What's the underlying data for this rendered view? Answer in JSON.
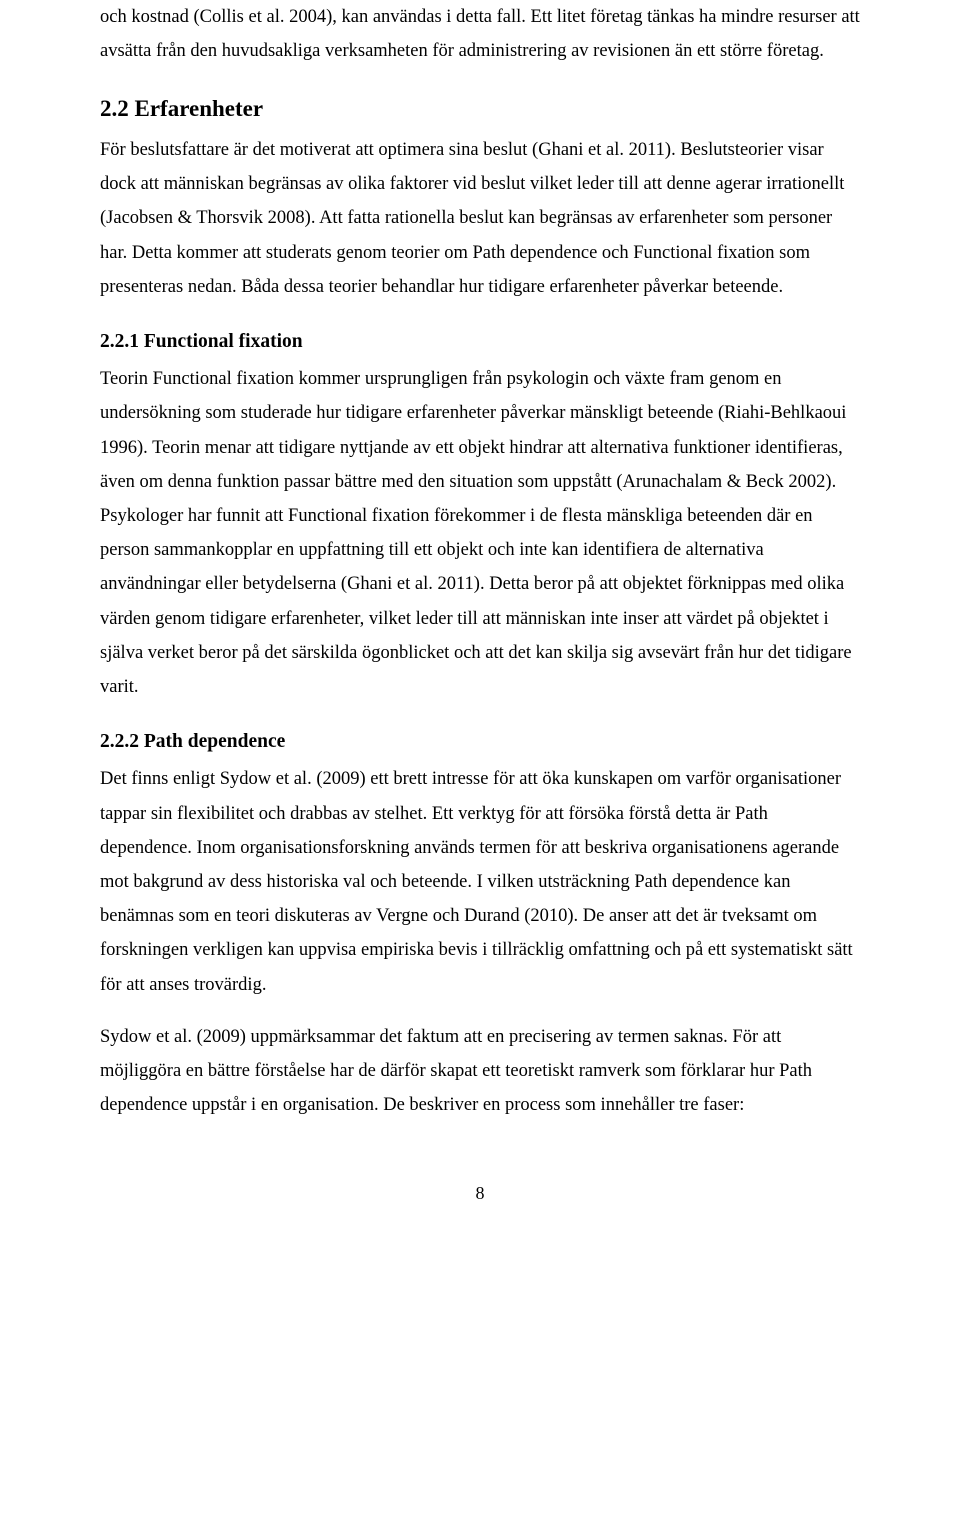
{
  "paragraphs": {
    "p1": "och kostnad (Collis et al. 2004), kan användas i detta fall. Ett litet företag tänkas ha mindre resurser att avsätta från den huvudsakliga verksamheten för administrering av revisionen än ett större företag.",
    "p2": "För beslutsfattare är det motiverat att optimera sina beslut (Ghani et al. 2011). Beslutsteorier visar dock att människan begränsas av olika faktorer vid beslut vilket leder till att denne agerar irrationellt (Jacobsen & Thorsvik 2008). Att fatta rationella beslut kan begränsas av erfarenheter som personer har. Detta kommer att studerats genom teorier om Path dependence och Functional fixation som presenteras nedan. Båda dessa teorier behandlar hur tidigare erfarenheter påverkar beteende.",
    "p3": "Teorin Functional fixation kommer ursprungligen från psykologin och växte fram genom en undersökning som studerade hur tidigare erfarenheter påverkar mänskligt beteende (Riahi-Behlkaoui 1996). Teorin menar att tidigare nyttjande av ett objekt hindrar att alternativa funktioner identifieras, även om denna funktion passar bättre med den situation som uppstått (Arunachalam & Beck 2002). Psykologer har funnit att Functional fixation förekommer i de flesta mänskliga beteenden där en person sammankopplar en uppfattning till ett objekt och inte kan identifiera de alternativa användningar eller betydelserna (Ghani et al. 2011). Detta beror på att objektet förknippas med olika värden genom tidigare erfarenheter, vilket leder till att människan inte inser att värdet på objektet i själva verket beror på det särskilda ögonblicket och att det kan skilja sig avsevärt från hur det tidigare varit.",
    "p4": "Det finns enligt Sydow et al. (2009) ett brett intresse för att öka kunskapen om varför organisationer tappar sin flexibilitet och drabbas av stelhet. Ett verktyg för att försöka förstå detta är Path dependence. Inom organisationsforskning används termen för att beskriva organisationens agerande mot bakgrund av dess historiska val och beteende. I vilken utsträckning Path dependence kan benämnas som en teori diskuteras av Vergne och Durand (2010). De anser att det är tveksamt om forskningen verkligen kan uppvisa empiriska bevis i tillräcklig omfattning och på ett systematiskt sätt för att anses trovärdig.",
    "p5": "Sydow et al. (2009) uppmärksammar det faktum att en precisering av termen saknas. För att möjliggöra en bättre förståelse har de därför skapat ett teoretiskt ramverk som förklarar hur Path dependence uppstår i en organisation. De beskriver en process som innehåller tre faser:"
  },
  "headings": {
    "h22": "2.2 Erfarenheter",
    "h221": "2.2.1 Functional fixation",
    "h222": "2.2.2 Path dependence"
  },
  "pageNumber": "8"
}
